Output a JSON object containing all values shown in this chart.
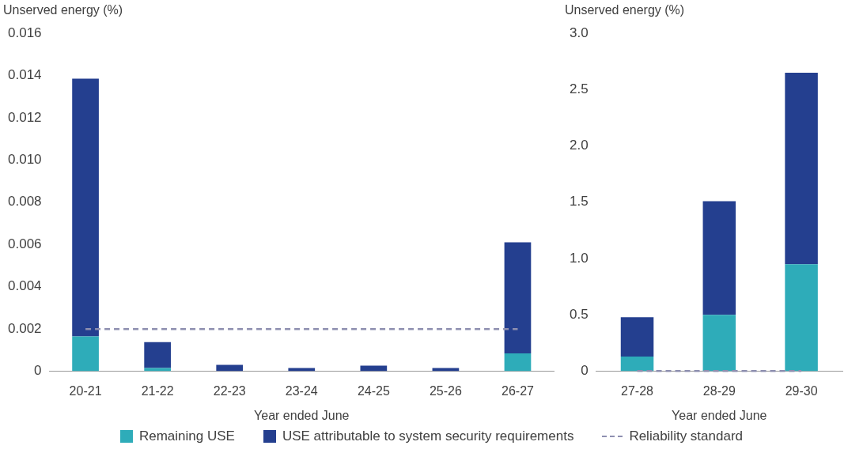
{
  "chart_data": [
    {
      "type": "bar",
      "ylabel": "Unserved energy (%)",
      "xlabel": "Year ended June",
      "categories": [
        "20-21",
        "21-22",
        "22-23",
        "23-24",
        "24-25",
        "25-26",
        "26-27"
      ],
      "stacked": true,
      "series": [
        {
          "name": "Remaining USE",
          "color": "#2eacb9",
          "values": [
            0.00165,
            0.00015,
            null,
            null,
            null,
            null,
            0.00085
          ]
        },
        {
          "name": "USE attributable to system security requirements",
          "color": "#243f8f",
          "values": [
            0.0122,
            0.00123,
            0.0003,
            0.00015,
            0.00027,
            0.00015,
            0.00525
          ]
        }
      ],
      "ylim": [
        0,
        0.016
      ],
      "yticks": [
        {
          "value": 0,
          "label": "0"
        },
        {
          "value": 0.002,
          "label": "0.002"
        },
        {
          "value": 0.004,
          "label": "0.004"
        },
        {
          "value": 0.006,
          "label": "0.006"
        },
        {
          "value": 0.008,
          "label": "0.008"
        },
        {
          "value": 0.01,
          "label": "0.010"
        },
        {
          "value": 0.012,
          "label": "0.012"
        },
        {
          "value": 0.014,
          "label": "0.014"
        },
        {
          "value": 0.016,
          "label": "0.016"
        }
      ],
      "ref_lines": [
        {
          "axis": "y",
          "value": 0.002,
          "label": "Reliability standard",
          "color": "#8e8fb0",
          "line_style": "dashed"
        }
      ],
      "grid": false,
      "legend": "bottom"
    },
    {
      "type": "bar",
      "ylabel": "Unserved energy (%)",
      "xlabel": "Year ended June",
      "categories": [
        "27-28",
        "28-29",
        "29-30"
      ],
      "stacked": true,
      "series": [
        {
          "color": "#2eacb9",
          "values": [
            0.13,
            0.5,
            0.95
          ]
        },
        {
          "color": "#243f8f",
          "values": [
            0.35,
            1.01,
            1.7
          ]
        }
      ],
      "ylim": [
        0,
        3
      ],
      "yticks": [
        {
          "value": 0,
          "label": "0"
        },
        {
          "value": 0.5,
          "label": "0.5"
        },
        {
          "value": 1,
          "label": "1.0"
        },
        {
          "value": 1.5,
          "label": "1.5"
        },
        {
          "value": 2,
          "label": "2.0"
        },
        {
          "value": 2.5,
          "label": "2.5"
        },
        {
          "value": 3,
          "label": "3.0"
        }
      ],
      "ref_lines": [
        {
          "axis": "y",
          "value": 0.002,
          "color": "#8e8fb0",
          "line_style": "dashed"
        }
      ],
      "grid": false,
      "legend": false
    }
  ]
}
